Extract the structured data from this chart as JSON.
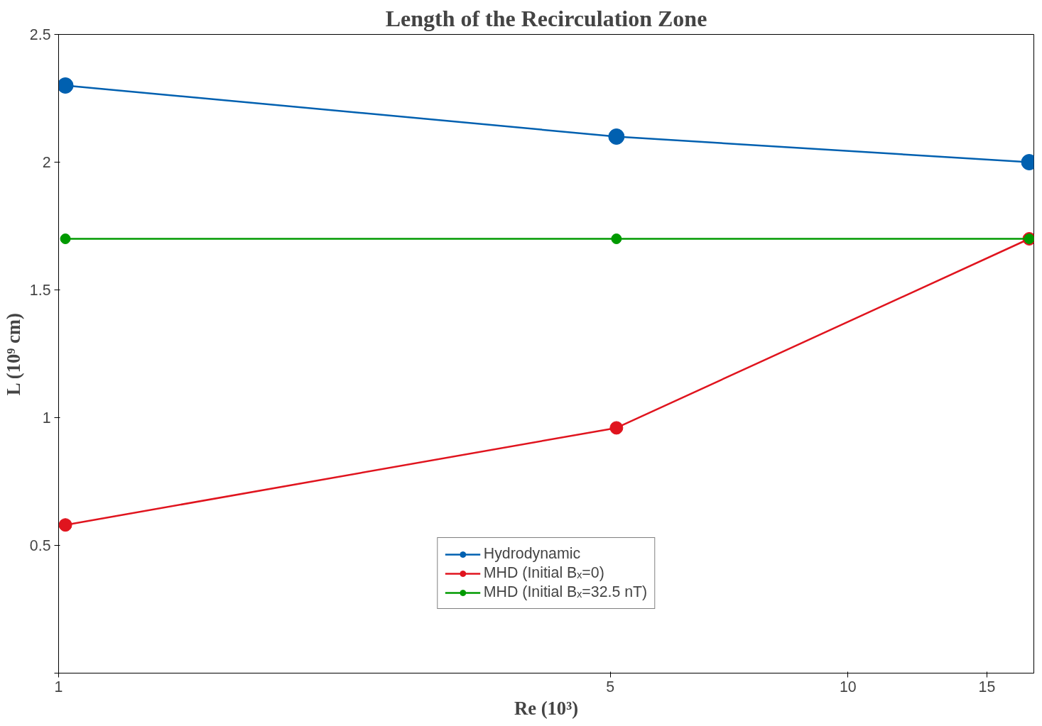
{
  "chart_data": {
    "type": "line",
    "title": "Length of the Recirculation Zone",
    "xlabel": "Re (10³)",
    "ylabel": "L (10⁹ cm)",
    "x": [
      1.02,
      5.09,
      16.97
    ],
    "series": [
      {
        "name": "Hydrodynamic",
        "color": "#0060b0",
        "values": [
          2.3,
          2.1,
          2.0
        ]
      },
      {
        "name": "MHD (Initial Bₓ=0)",
        "color": "#e0141e",
        "values": [
          0.58,
          0.96,
          1.7
        ]
      },
      {
        "name": "MHD (Initial Bₓ=32.5 nT)",
        "color": "#009a00",
        "values": [
          1.7,
          1.7,
          1.7
        ]
      }
    ],
    "log": "x",
    "xlim": [
      1,
      17.2
    ],
    "xticks": [
      1,
      5,
      10,
      15
    ],
    "ylim": [
      0,
      2.5
    ],
    "yticks": [
      {
        "value": 0,
        "label": null
      },
      0.5,
      1,
      1.5,
      2,
      2.5
    ],
    "grid": false,
    "legend": "bottom",
    "marker": "circle",
    "line_style": "solid"
  }
}
